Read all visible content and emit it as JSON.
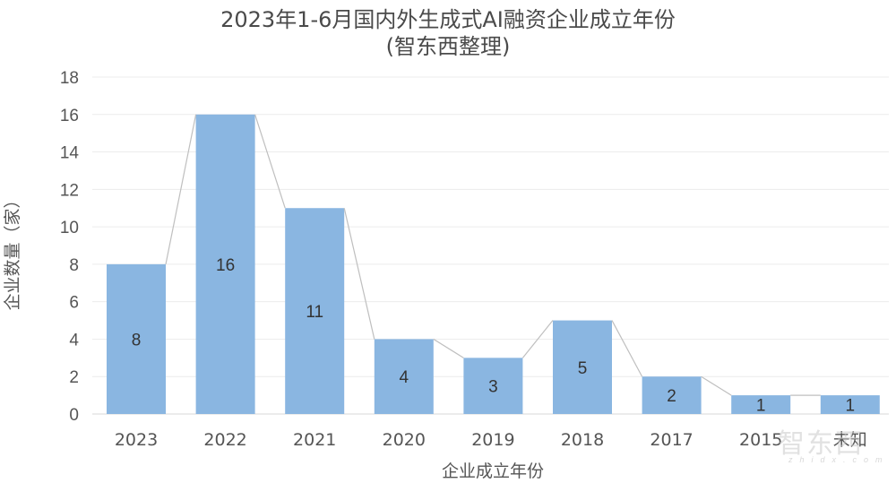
{
  "chart_data": {
    "type": "bar",
    "title": "2023年1-6月国内外生成式AI融资企业成立年份",
    "subtitle": "(智东西整理)",
    "xlabel": "企业成立年份",
    "ylabel": "企业数量（家）",
    "categories": [
      "2023",
      "2022",
      "2021",
      "2020",
      "2019",
      "2018",
      "2017",
      "2015",
      "未知"
    ],
    "values": [
      8,
      16,
      11,
      4,
      3,
      5,
      2,
      1,
      1
    ],
    "ylim": [
      0,
      18
    ],
    "yticks": [
      0,
      2,
      4,
      6,
      8,
      10,
      12,
      14,
      16,
      18
    ],
    "grid": true,
    "legend": "none",
    "connector_lines": true,
    "bar_color": "#8ab6e1",
    "connector_color": "#bfbfbf"
  },
  "watermark": {
    "text": "智东西",
    "sub": "zhidx.com"
  }
}
